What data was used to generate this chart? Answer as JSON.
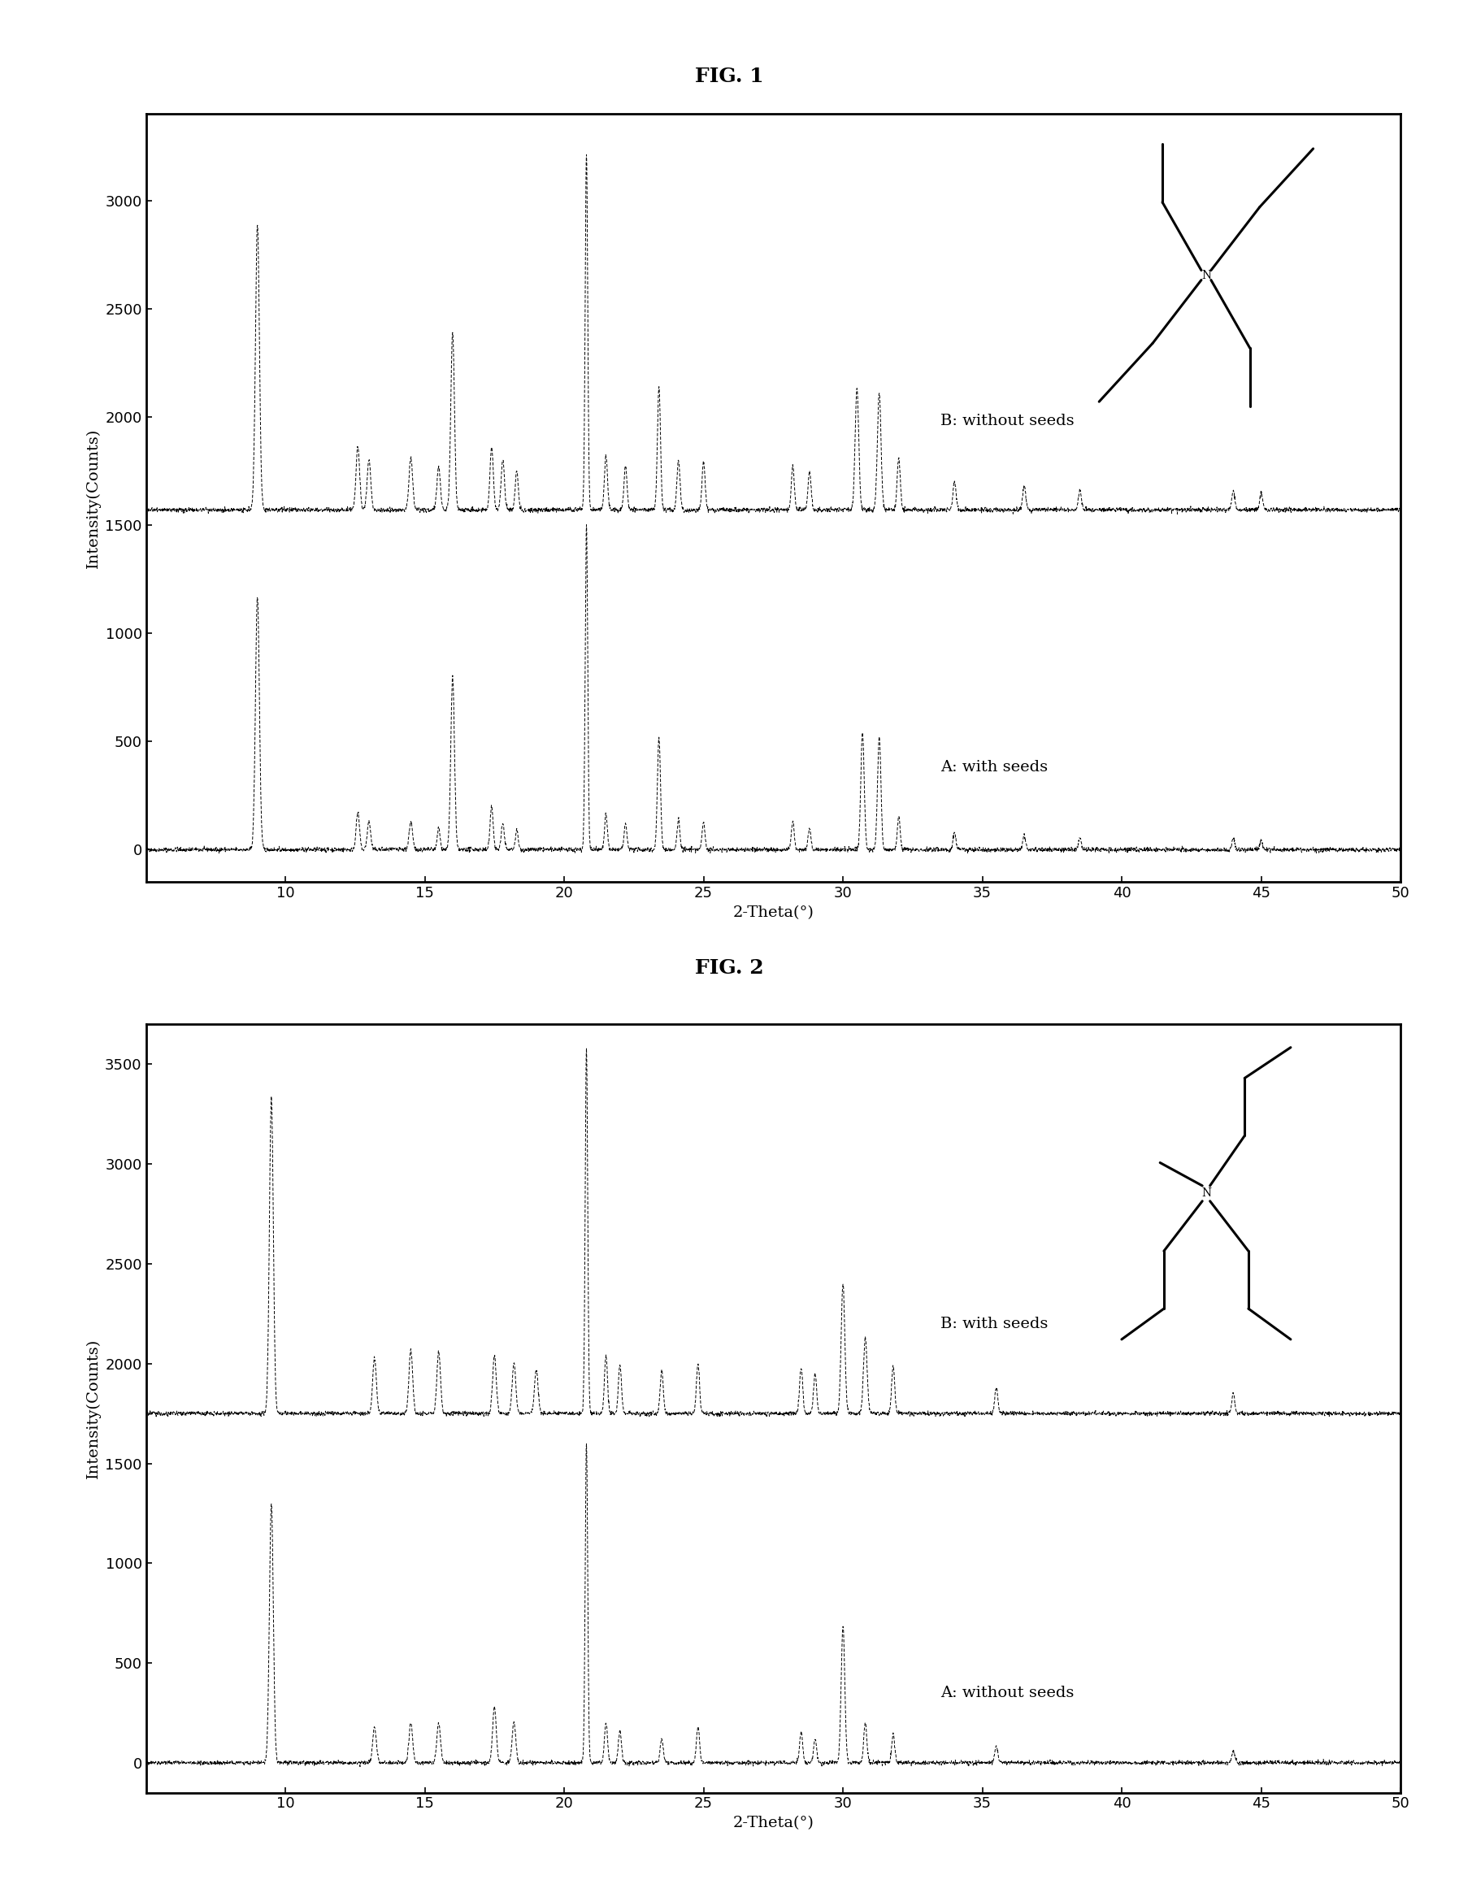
{
  "fig1_title": "FIG. 1",
  "fig2_title": "FIG. 2",
  "fig1_labelA": "A: with seeds",
  "fig1_labelB": "B: without seeds",
  "fig2_labelA": "A: without seeds",
  "fig2_labelB": "B: with seeds",
  "xlabel": "2-Theta(°)",
  "ylabel": "Intensity(Counts)",
  "fig1_ylim": [
    -150,
    3400
  ],
  "fig2_ylim": [
    -150,
    3700
  ],
  "fig1_yticks": [
    0,
    500,
    1000,
    1500,
    2000,
    2500,
    3000
  ],
  "fig2_yticks": [
    0,
    500,
    1000,
    1500,
    2000,
    2500,
    3000,
    3500
  ],
  "xlim": [
    5,
    50
  ],
  "xticks": [
    10,
    15,
    20,
    25,
    30,
    35,
    40,
    45,
    50
  ],
  "fig1_offsetB": 1570,
  "fig2_offsetB": 1750,
  "line_color": "#000000",
  "background_color": "#ffffff",
  "title_fontsize": 18,
  "label_fontsize": 14,
  "tick_fontsize": 13,
  "spine_linewidth": 2.0
}
